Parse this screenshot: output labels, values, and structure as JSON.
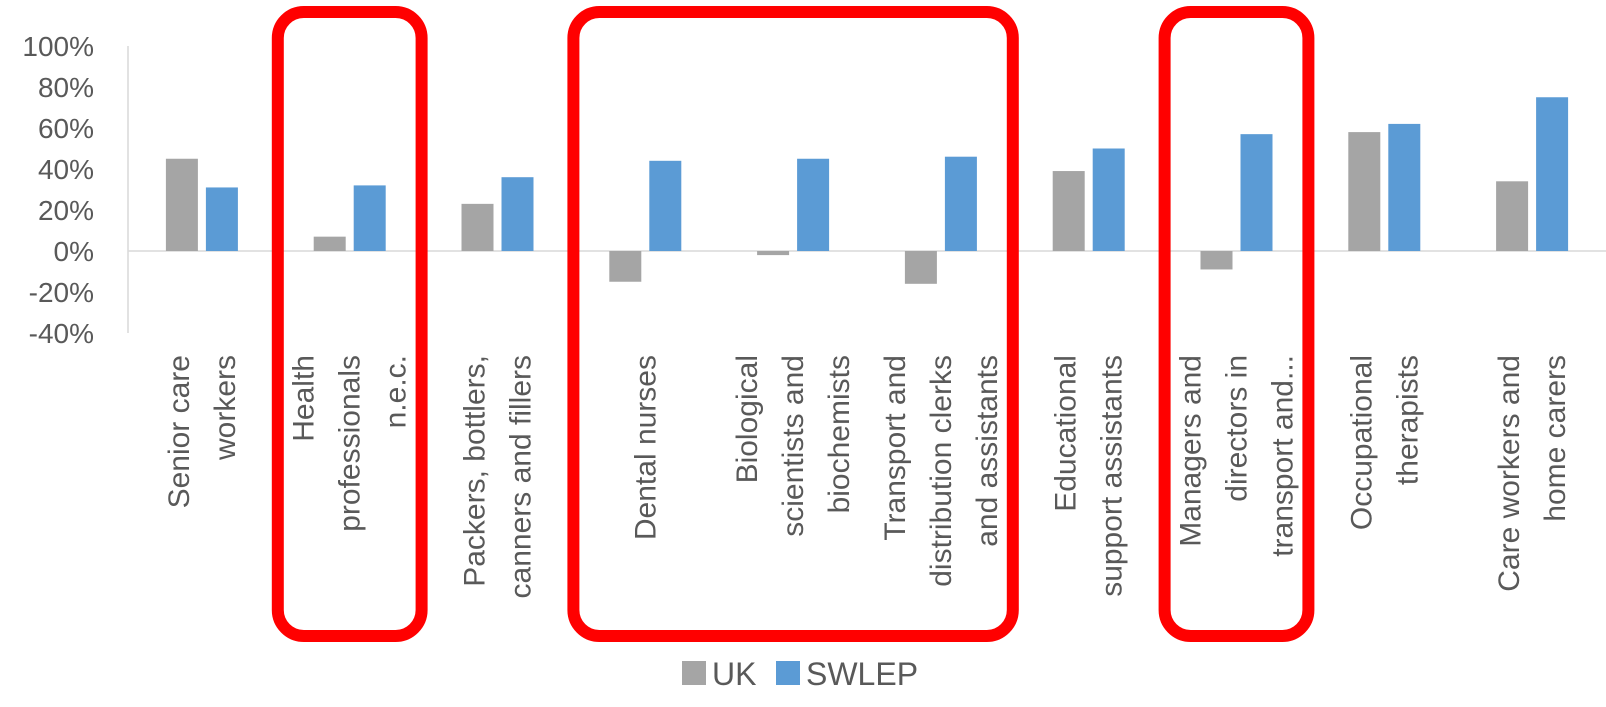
{
  "chart_data": {
    "type": "bar",
    "title": "",
    "xlabel": "",
    "ylabel": "",
    "ylim": [
      -0.4,
      1.0
    ],
    "y_ticks": [
      "100%",
      "80%",
      "60%",
      "40%",
      "20%",
      "0%",
      "-20%",
      "-40%"
    ],
    "grid": false,
    "legend_position": "bottom",
    "categories": [
      [
        "Senior care",
        "workers"
      ],
      [
        "Health",
        "professionals",
        "n.e.c."
      ],
      [
        "Packers, bottlers,",
        "canners and fillers"
      ],
      [
        "Dental nurses"
      ],
      [
        "Biological",
        "scientists and",
        "biochemists"
      ],
      [
        "Transport and",
        "distribution clerks",
        "and assistants"
      ],
      [
        "Educational",
        "support assistants"
      ],
      [
        "Managers and",
        "directors in",
        "transport and..."
      ],
      [
        "Occupational",
        "therapists"
      ],
      [
        "Care workers and",
        "home carers"
      ]
    ],
    "series": [
      {
        "name": "UK",
        "color": "#a5a5a5",
        "values": [
          0.45,
          0.07,
          0.23,
          -0.15,
          -0.02,
          -0.16,
          0.39,
          -0.09,
          0.58,
          0.34
        ]
      },
      {
        "name": "SWLEP",
        "color": "#5b9bd5",
        "values": [
          0.31,
          0.32,
          0.36,
          0.44,
          0.45,
          0.46,
          0.5,
          0.57,
          0.62,
          0.75
        ]
      }
    ],
    "highlight_groups": [
      {
        "from_category": 1,
        "to_category": 1,
        "color": "#ff0000"
      },
      {
        "from_category": 3,
        "to_category": 5,
        "color": "#ff0000"
      },
      {
        "from_category": 7,
        "to_category": 7,
        "color": "#ff0000"
      }
    ]
  }
}
